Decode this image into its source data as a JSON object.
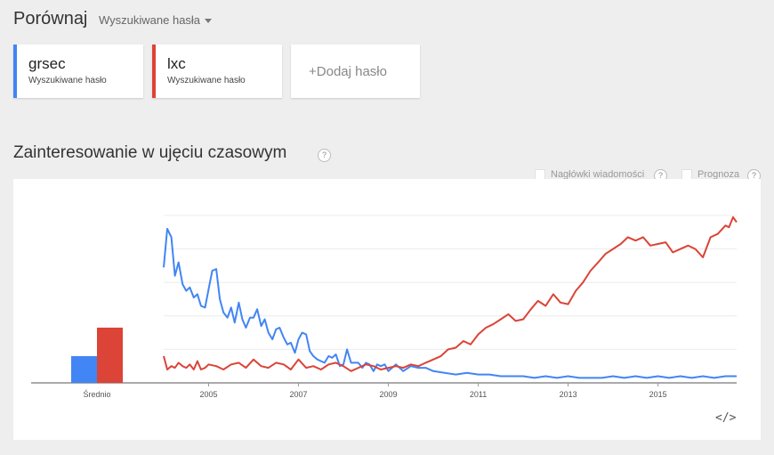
{
  "header": {
    "title": "Porównaj",
    "search_type": "Wyszukiwane hasła"
  },
  "terms": [
    {
      "name": "grsec",
      "type": "Wyszukiwane hasło",
      "color": "#4285f4"
    },
    {
      "name": "lxc",
      "type": "Wyszukiwane hasło",
      "color": "#db4437"
    }
  ],
  "add_term": {
    "label": "Dodaj hasło",
    "plus": "+"
  },
  "section": {
    "title": "Zainteresowanie w ujęciu czasowym",
    "help": "?"
  },
  "options": {
    "headlines": "Nagłówki wiadomości",
    "forecast": "Prognoza",
    "help": "?"
  },
  "embed_label": "</>",
  "chart_data": [
    {
      "type": "bar",
      "categories": [
        "Średnio"
      ],
      "series": [
        {
          "name": "grsec",
          "values": [
            16
          ]
        },
        {
          "name": "lxc",
          "values": [
            33
          ]
        }
      ],
      "ylim": [
        0,
        100
      ],
      "colors": [
        "#4285f4",
        "#db4437"
      ]
    },
    {
      "type": "line",
      "x_tick_labels": [
        "2005",
        "2007",
        "2009",
        "2011",
        "2013",
        "2015"
      ],
      "x_tick_values": [
        2005,
        2007,
        2009,
        2011,
        2013,
        2015
      ],
      "xlim": [
        2004,
        2016.75
      ],
      "ylim": [
        0,
        100
      ],
      "grid": true,
      "series": [
        {
          "name": "grsec",
          "color": "#4285f4",
          "x": [
            2004.0,
            2004.08,
            2004.17,
            2004.25,
            2004.33,
            2004.42,
            2004.5,
            2004.58,
            2004.67,
            2004.75,
            2004.83,
            2004.92,
            2005.0,
            2005.08,
            2005.17,
            2005.25,
            2005.33,
            2005.42,
            2005.5,
            2005.58,
            2005.67,
            2005.75,
            2005.83,
            2005.92,
            2006.0,
            2006.08,
            2006.17,
            2006.25,
            2006.33,
            2006.42,
            2006.5,
            2006.58,
            2006.67,
            2006.75,
            2006.83,
            2006.92,
            2007.0,
            2007.08,
            2007.17,
            2007.25,
            2007.33,
            2007.42,
            2007.5,
            2007.58,
            2007.67,
            2007.75,
            2007.83,
            2007.92,
            2008.0,
            2008.08,
            2008.17,
            2008.25,
            2008.33,
            2008.42,
            2008.5,
            2008.58,
            2008.67,
            2008.75,
            2008.83,
            2008.92,
            2009.0,
            2009.17,
            2009.33,
            2009.5,
            2009.67,
            2009.83,
            2010.0,
            2010.25,
            2010.5,
            2010.75,
            2011.0,
            2011.25,
            2011.5,
            2011.75,
            2012.0,
            2012.25,
            2012.5,
            2012.75,
            2013.0,
            2013.25,
            2013.5,
            2013.75,
            2014.0,
            2014.25,
            2014.5,
            2014.75,
            2015.0,
            2015.25,
            2015.5,
            2015.75,
            2016.0,
            2016.25,
            2016.5,
            2016.75
          ],
          "y": [
            69,
            92,
            87,
            64,
            72,
            59,
            55,
            57,
            51,
            53,
            46,
            45,
            56,
            67,
            68,
            50,
            42,
            39,
            45,
            36,
            48,
            38,
            33,
            39,
            39,
            44,
            34,
            38,
            30,
            26,
            32,
            33,
            27,
            23,
            24,
            18,
            26,
            30,
            29,
            19,
            16,
            14,
            13,
            12,
            16,
            15,
            17,
            10,
            11,
            20,
            12,
            12,
            12,
            9,
            12,
            11,
            7,
            11,
            10,
            11,
            7,
            11,
            7,
            10,
            9,
            9,
            7,
            6,
            5,
            6,
            5,
            5,
            4,
            4,
            4,
            3,
            4,
            3,
            4,
            3,
            3,
            3,
            4,
            3,
            4,
            3,
            4,
            3,
            4,
            3,
            4,
            3,
            4,
            4
          ]
        },
        {
          "name": "lxc",
          "color": "#db4437",
          "x": [
            2004.0,
            2004.08,
            2004.17,
            2004.25,
            2004.33,
            2004.42,
            2004.5,
            2004.58,
            2004.67,
            2004.75,
            2004.83,
            2004.92,
            2005.0,
            2005.17,
            2005.33,
            2005.5,
            2005.67,
            2005.83,
            2006.0,
            2006.17,
            2006.33,
            2006.5,
            2006.67,
            2006.83,
            2007.0,
            2007.17,
            2007.33,
            2007.5,
            2007.67,
            2007.83,
            2008.0,
            2008.17,
            2008.33,
            2008.5,
            2008.67,
            2008.83,
            2009.0,
            2009.17,
            2009.33,
            2009.5,
            2009.67,
            2009.83,
            2010.0,
            2010.17,
            2010.33,
            2010.5,
            2010.67,
            2010.83,
            2011.0,
            2011.17,
            2011.33,
            2011.5,
            2011.67,
            2011.83,
            2012.0,
            2012.17,
            2012.33,
            2012.5,
            2012.67,
            2012.83,
            2013.0,
            2013.17,
            2013.33,
            2013.5,
            2013.67,
            2013.83,
            2014.0,
            2014.17,
            2014.33,
            2014.5,
            2014.67,
            2014.83,
            2015.0,
            2015.17,
            2015.33,
            2015.5,
            2015.67,
            2015.83,
            2016.0,
            2016.17,
            2016.33,
            2016.5,
            2016.58,
            2016.67,
            2016.75
          ],
          "y": [
            16,
            8,
            10,
            9,
            12,
            10,
            9,
            11,
            8,
            13,
            8,
            9,
            11,
            10,
            8,
            11,
            12,
            9,
            14,
            10,
            9,
            12,
            11,
            8,
            14,
            9,
            10,
            8,
            11,
            12,
            10,
            7,
            9,
            11,
            10,
            8,
            9,
            10,
            9,
            11,
            10,
            12,
            14,
            16,
            20,
            21,
            25,
            23,
            29,
            33,
            35,
            38,
            41,
            37,
            38,
            44,
            49,
            46,
            53,
            48,
            47,
            55,
            60,
            67,
            72,
            77,
            80,
            83,
            87,
            85,
            87,
            82,
            83,
            84,
            78,
            80,
            82,
            80,
            75,
            87,
            89,
            94,
            93,
            99,
            96
          ]
        }
      ]
    }
  ]
}
